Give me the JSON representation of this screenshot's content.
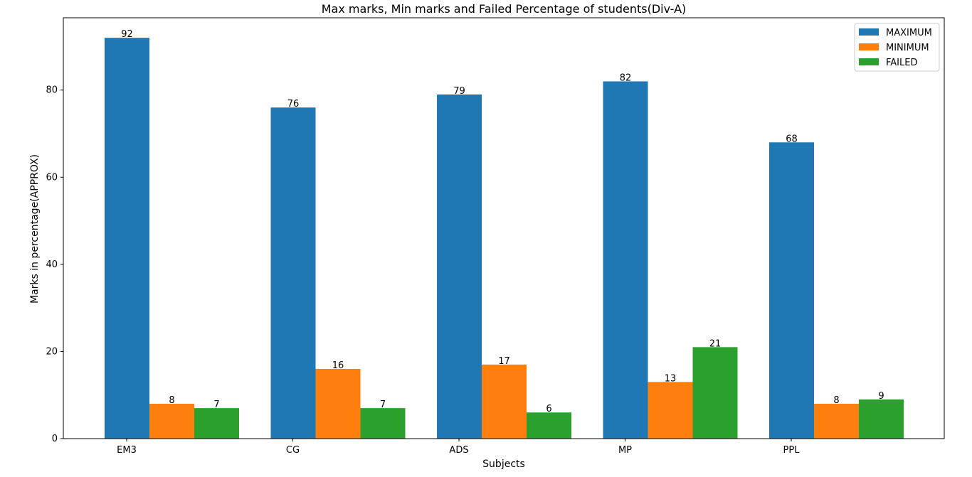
{
  "chart_data": {
    "type": "bar",
    "title": "Max marks, Min marks and Failed Percentage of students(Div-A)",
    "xlabel": "Subjects",
    "ylabel": "Marks in percentage(APPROX)",
    "categories": [
      "EM3",
      "CG",
      "ADS",
      "MP",
      "PPL"
    ],
    "series": [
      {
        "name": "MAXIMUM",
        "color": "#1f77b4",
        "values": [
          92,
          76,
          79,
          82,
          68
        ]
      },
      {
        "name": "MINIMUM",
        "color": "#ff7f0e",
        "values": [
          8,
          16,
          17,
          13,
          8
        ]
      },
      {
        "name": "FAILED",
        "color": "#2ca02c",
        "values": [
          7,
          7,
          6,
          21,
          9
        ]
      }
    ],
    "ylim": [
      0,
      96.6
    ],
    "yticks": [
      0,
      20,
      40,
      60,
      80
    ],
    "grid": false,
    "legend_position": "top-right"
  }
}
